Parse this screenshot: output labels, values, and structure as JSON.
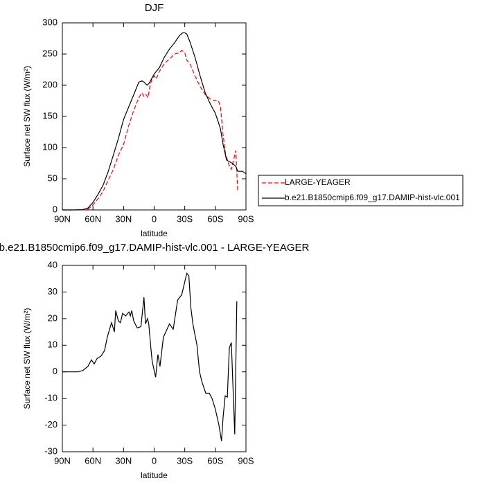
{
  "chart_data": [
    {
      "type": "line",
      "title": "DJF",
      "xlabel": "latitude",
      "ylabel": "Surface net SW flux (W/m²)",
      "x": [
        90,
        80,
        70,
        65,
        60,
        55,
        50,
        45,
        40,
        35,
        30,
        25,
        20,
        15,
        12,
        10,
        7,
        5,
        2,
        0,
        -5,
        -10,
        -15,
        -20,
        -25,
        -28,
        -30,
        -32,
        -35,
        -40,
        -45,
        -50,
        -55,
        -60,
        -63,
        -65,
        -67.6,
        -71,
        -76.4,
        -80,
        -82,
        -86.6,
        -90
      ],
      "series": [
        {
          "name": "LARGE-YEAGER",
          "color": "#ff0000",
          "dash": true,
          "x": [
            90,
            70,
            65,
            60,
            55,
            50,
            45,
            40,
            35,
            30,
            25,
            20,
            15,
            12,
            10,
            8,
            6,
            4,
            2,
            0,
            -2,
            -5,
            -10,
            -15,
            -20,
            -25,
            -27,
            -30,
            -32,
            -35,
            -40,
            -45,
            -50,
            -55,
            -60,
            -63,
            -65,
            -67.6,
            -70,
            -73.7,
            -75.7,
            -77.8,
            -80,
            -81.9
          ],
          "values": [
            0,
            0,
            1,
            8,
            18,
            30,
            48,
            65,
            88,
            105,
            135,
            160,
            180,
            188,
            182,
            185,
            180,
            200,
            210,
            215,
            210,
            222,
            235,
            242,
            250,
            252,
            256,
            252,
            240,
            235,
            215,
            198,
            185,
            178,
            175,
            175,
            165,
            120,
            90,
            70,
            65,
            80,
            95,
            30
          ]
        },
        {
          "name": "b.e21.B1850cmip6.f09_g17.DAMIP-hist-vlc.001",
          "color": "#000000",
          "dash": false,
          "x": [
            90,
            80,
            70,
            65,
            60,
            55,
            50,
            45,
            40,
            35,
            30,
            25,
            20,
            15,
            12,
            10,
            7,
            5,
            2,
            0,
            -5,
            -10,
            -15,
            -20,
            -25,
            -28,
            -30,
            -32,
            -35,
            -40,
            -45,
            -50,
            -55,
            -60,
            -63,
            -65,
            -67.6,
            -71,
            -76.4,
            -80,
            -82,
            -86.6,
            -90
          ],
          "values": [
            0,
            0,
            0.5,
            3,
            12,
            25,
            40,
            62,
            88,
            115,
            145,
            165,
            185,
            205,
            207,
            205,
            200,
            203,
            212,
            218,
            228,
            245,
            258,
            268,
            280,
            284,
            284,
            282,
            270,
            245,
            215,
            188,
            170,
            155,
            140,
            130,
            105,
            80,
            75,
            70,
            62,
            62,
            58
          ]
        }
      ],
      "xlim": [
        90,
        -90
      ],
      "xticks": [
        {
          "value": 90,
          "label": "90N"
        },
        {
          "value": 60,
          "label": "60N"
        },
        {
          "value": 30,
          "label": "30N"
        },
        0,
        {
          "value": -30,
          "label": "30S"
        },
        {
          "value": -60,
          "label": "60S"
        },
        {
          "value": -90,
          "label": "90S"
        }
      ],
      "ylim": [
        0,
        300
      ],
      "yticks": [
        0,
        50,
        100,
        150,
        200,
        250,
        300
      ],
      "legend": "right"
    },
    {
      "type": "line",
      "title": "b.e21.B1850cmip6.f09_g17.DAMIP-hist-vlc.001 - LARGE-YEAGER",
      "xlabel": "latitude",
      "ylabel": "Surface net SW flux (W/m²)",
      "series": [
        {
          "color": "#000000",
          "dash": false,
          "x": [
            90,
            75,
            70,
            65,
            61.5,
            58.8,
            56,
            52,
            48.6,
            46,
            41.8,
            39,
            37.7,
            35,
            33,
            31,
            28,
            24.8,
            23.4,
            22,
            20,
            16.6,
            13,
            10,
            8.5,
            6.5,
            5.3,
            3,
            2,
            -1.4,
            -3.7,
            -5.7,
            -9,
            -15,
            -18.7,
            -23,
            -27,
            -32,
            -34,
            -36,
            -38,
            -42,
            -44.5,
            -47,
            -50.6,
            -54,
            -56.7,
            -60,
            -63.5,
            -66,
            -67.6,
            -69.6,
            -71.7,
            -73.7,
            -75.7,
            -79,
            -81
          ],
          "values": [
            0,
            0,
            0.5,
            2,
            4.5,
            3,
            5,
            6,
            8,
            13,
            18.5,
            15,
            23,
            19,
            18.5,
            22,
            21,
            22.5,
            21,
            23,
            19,
            16.5,
            17,
            28,
            18,
            20,
            18,
            8,
            4,
            -2,
            6.5,
            2,
            13,
            18,
            16,
            27,
            29,
            37,
            36,
            24,
            18,
            10,
            0,
            -4,
            -8,
            -8,
            -10,
            -14,
            -20,
            -26,
            -17,
            -9,
            -9.5,
            9,
            11,
            -23.5,
            26.5
          ]
        }
      ],
      "xlim": [
        90,
        -90
      ],
      "xticks": [
        {
          "value": 90,
          "label": "90N"
        },
        {
          "value": 60,
          "label": "60N"
        },
        {
          "value": 30,
          "label": "30N"
        },
        0,
        {
          "value": -30,
          "label": "30S"
        },
        {
          "value": -60,
          "label": "60S"
        },
        {
          "value": -90,
          "label": "90S"
        }
      ],
      "ylim": [
        -30,
        40
      ],
      "yticks": [
        -30,
        -20,
        -10,
        0,
        10,
        20,
        30,
        40
      ]
    }
  ]
}
